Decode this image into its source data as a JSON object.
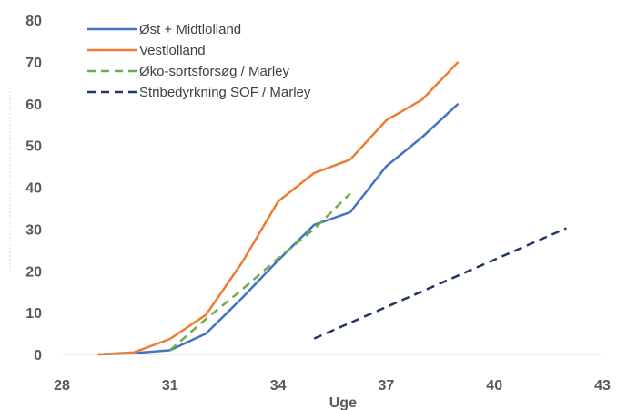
{
  "chart_data": {
    "type": "line",
    "title": "",
    "xlabel": "Uge",
    "ylabel": "",
    "xlim": [
      28,
      43
    ],
    "ylim": [
      0,
      80
    ],
    "xticks": [
      "28",
      "31",
      "34",
      "37",
      "40",
      "43"
    ],
    "yticks": [
      "0",
      "10",
      "20",
      "30",
      "40",
      "50",
      "60",
      "70",
      "80"
    ],
    "grid": false,
    "legend_position": "top-left",
    "series": [
      {
        "name": "Øst + Midtlolland",
        "color": "#4472C4",
        "dash": "solid",
        "x": [
          29,
          30,
          31,
          32,
          33,
          34,
          35,
          36,
          37,
          38,
          39
        ],
        "y": [
          0,
          0.3,
          1,
          5,
          13.5,
          22.5,
          31,
          34,
          45,
          52,
          60
        ]
      },
      {
        "name": "Vestlolland",
        "color": "#ED7D31",
        "dash": "solid",
        "x": [
          29,
          30,
          31,
          32,
          33,
          34,
          35,
          36,
          37,
          38,
          39
        ],
        "y": [
          0,
          0.5,
          3.7,
          9.5,
          22,
          36.6,
          43.4,
          46.6,
          56,
          61,
          70
        ]
      },
      {
        "name": "Øko-sortsforsøg / Marley",
        "color": "#70AD47",
        "dash": "dashed",
        "x": [
          31,
          32,
          33,
          34,
          35,
          36
        ],
        "y": [
          1,
          8.5,
          15.5,
          23,
          30,
          38.5
        ]
      },
      {
        "name": "Stribedyrkning SOF / Marley",
        "color": "#203864",
        "dash": "dashed",
        "x": [
          35,
          42
        ],
        "y": [
          3.8,
          30.2
        ]
      }
    ]
  }
}
